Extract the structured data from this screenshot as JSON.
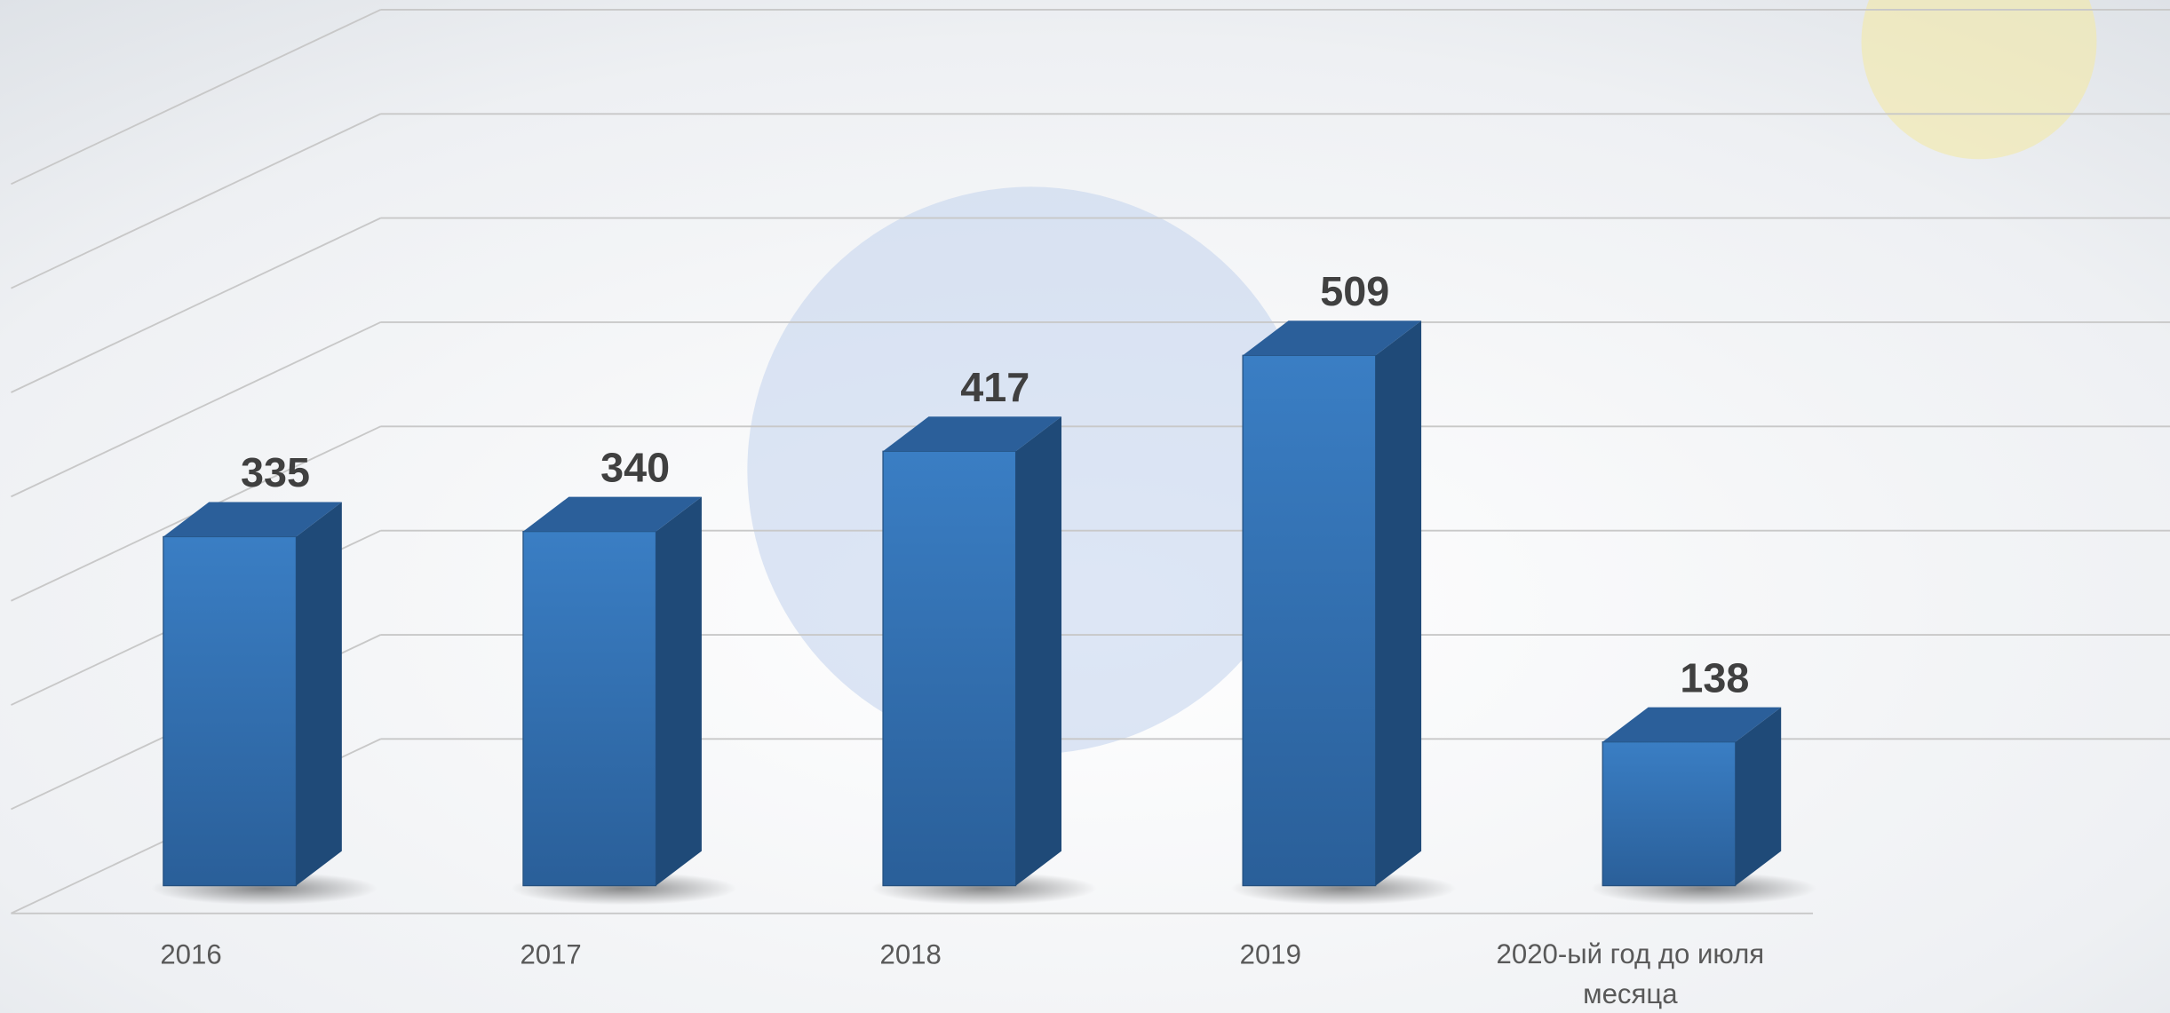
{
  "chart_data": {
    "type": "bar3d",
    "categories": [
      "2016",
      "2017",
      "2018",
      "2019",
      "2020-ый год до июля месяца"
    ],
    "values": [
      335,
      340,
      417,
      509,
      138
    ],
    "color": "#2e6db0",
    "ylim": [
      0,
      700
    ],
    "yticks": [
      0,
      100,
      200,
      300,
      400,
      500,
      600,
      700
    ],
    "grid": true
  }
}
